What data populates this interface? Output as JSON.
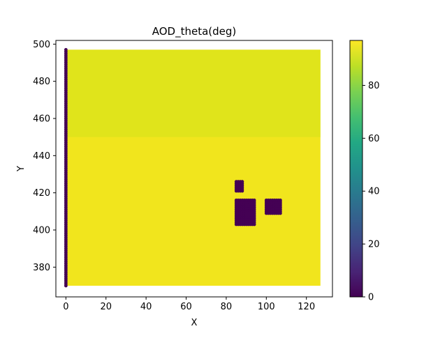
{
  "chart_data": {
    "type": "scatter",
    "title": "AOD_theta(deg)",
    "xlabel": "X",
    "ylabel": "Y",
    "xlim": [
      -5,
      133
    ],
    "ylim": [
      364,
      502
    ],
    "xticks": [
      0,
      20,
      40,
      60,
      80,
      100,
      120
    ],
    "yticks": [
      380,
      400,
      420,
      440,
      460,
      480,
      500
    ],
    "colorbar": {
      "colormap": "viridis",
      "vmin": 0,
      "vmax": 97,
      "ticks": [
        0,
        20,
        40,
        60,
        80
      ]
    },
    "grid": false,
    "legend": "none",
    "description_of_field": {
      "x_range": [
        0,
        127
      ],
      "y_range": [
        370,
        497
      ],
      "background_value": 94,
      "column_x0_value": 0,
      "lighter_regions_value": 90,
      "upper_band_y_range": [
        450,
        497
      ],
      "outlier_clusters": [
        {
          "x_range": [
            85,
            88
          ],
          "y_range": [
            421,
            426
          ],
          "value": 0
        },
        {
          "x_range": [
            85,
            94
          ],
          "y_range": [
            403,
            416
          ],
          "value": 0
        },
        {
          "x_range": [
            100,
            107
          ],
          "y_range": [
            409,
            416
          ],
          "value": 0
        }
      ]
    },
    "colors": {
      "low": "#440154",
      "high": "#f1e51d",
      "mid_high": "#d5e21a"
    }
  }
}
